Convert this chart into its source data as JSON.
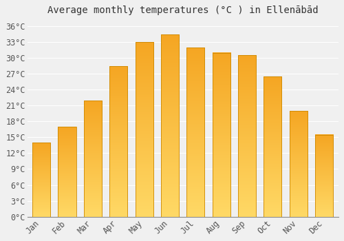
{
  "title": "Average monthly temperatures (°C ) in Ellenābād",
  "months": [
    "Jan",
    "Feb",
    "Mar",
    "Apr",
    "May",
    "Jun",
    "Jul",
    "Aug",
    "Sep",
    "Oct",
    "Nov",
    "Dec"
  ],
  "temps": [
    14,
    17,
    22,
    28.5,
    33,
    34.5,
    32,
    31,
    30.5,
    26.5,
    20,
    15.5
  ],
  "bar_color": "#FFA500",
  "bar_color_top": "#F5A623",
  "bar_color_bottom": "#FFD966",
  "ylim": [
    0,
    37
  ],
  "yticks": [
    0,
    3,
    6,
    9,
    12,
    15,
    18,
    21,
    24,
    27,
    30,
    33,
    36
  ],
  "background_color": "#f0f0f0",
  "grid_color": "#ffffff",
  "bar_edge_color": "#cc8800",
  "title_fontsize": 10,
  "tick_fontsize": 8.5
}
